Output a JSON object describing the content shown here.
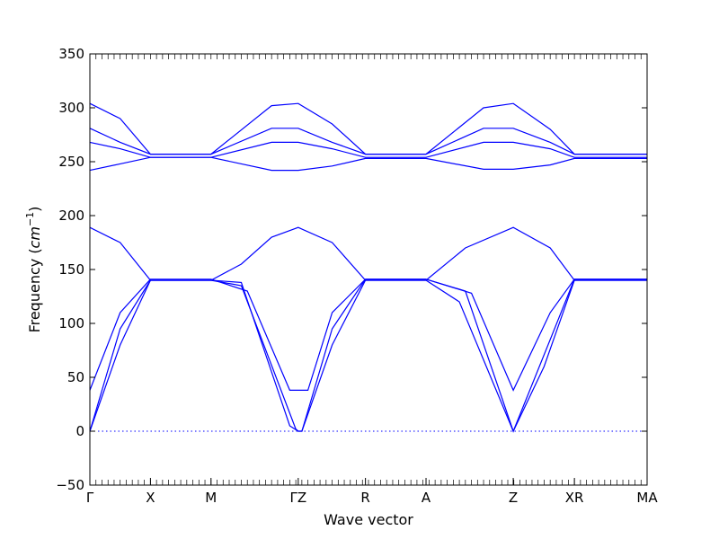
{
  "chart_data": {
    "type": "line",
    "xlabel": "Wave vector",
    "ylabel": "Frequency (",
    "ylabel_unit": "cm",
    "ylabel_exp": "−1",
    "ylabel_close": ")",
    "ylim": [
      -50,
      350
    ],
    "y_ticks": [
      -50,
      0,
      50,
      100,
      150,
      200,
      250,
      300,
      350
    ],
    "y_tick_labels": [
      "−50",
      "0",
      "50",
      "100",
      "150",
      "200",
      "250",
      "300",
      "350"
    ],
    "x_range": [
      0,
      9.2
    ],
    "high_symmetry_points": [
      {
        "x": 0.0,
        "label": "Γ"
      },
      {
        "x": 1.0,
        "label": "X"
      },
      {
        "x": 2.0,
        "label": "M"
      },
      {
        "x": 3.44,
        "label": "ΓZ"
      },
      {
        "x": 4.55,
        "label": "R"
      },
      {
        "x": 5.55,
        "label": "A"
      },
      {
        "x": 6.99,
        "label": "Z"
      },
      {
        "x": 8.0,
        "label": "XR"
      },
      {
        "x": 9.2,
        "label": "MA"
      }
    ],
    "zero_reference_line": {
      "y": 0,
      "style": "dotted",
      "color": "#0000ff"
    },
    "line_color": "#0000ff",
    "grid": false,
    "series": [
      {
        "x": [
          0,
          0.5,
          1,
          2,
          2.5,
          3.4,
          3.44,
          3.5,
          4.0,
          4.55,
          5.55,
          6.1,
          6.99,
          7.5,
          8.0,
          9.2
        ],
        "values": [
          0,
          80,
          140,
          140,
          135,
          2,
          0,
          0,
          80,
          140,
          140,
          120,
          0,
          60,
          140,
          140
        ]
      },
      {
        "x": [
          0,
          0.5,
          1,
          2,
          2.5,
          3.3,
          3.44,
          3.5,
          4.0,
          4.55,
          5.55,
          6.2,
          6.99,
          7.6,
          8.0,
          9.2
        ],
        "values": [
          0,
          95,
          140,
          140,
          138,
          5,
          0,
          0,
          95,
          141,
          141,
          130,
          0,
          85,
          141,
          141
        ]
      },
      {
        "x": [
          0,
          0.5,
          1,
          2,
          2.6,
          3.3,
          3.44,
          3.6,
          4.0,
          4.55,
          5.55,
          6.3,
          6.99,
          7.6,
          8.0,
          9.2
        ],
        "values": [
          38,
          110,
          141,
          141,
          130,
          38,
          38,
          38,
          110,
          141,
          141,
          128,
          38,
          110,
          141,
          141
        ]
      },
      {
        "x": [
          0,
          0.5,
          1,
          2,
          2.5,
          3.0,
          3.44,
          4.0,
          4.55,
          5.55,
          6.2,
          6.99,
          7.6,
          8.0,
          9.2
        ],
        "values": [
          189,
          175,
          140,
          140,
          155,
          180,
          189,
          175,
          140,
          140,
          170,
          189,
          170,
          140,
          140
        ]
      },
      {
        "x": [
          0,
          0.5,
          1,
          2,
          3.0,
          3.44,
          4.0,
          4.55,
          5.55,
          6.5,
          6.99,
          7.6,
          8.0,
          9.2
        ],
        "values": [
          242,
          248,
          254,
          254,
          242,
          242,
          246,
          253,
          253,
          243,
          243,
          247,
          253,
          253
        ]
      },
      {
        "x": [
          0,
          0.5,
          1,
          2,
          3.0,
          3.44,
          4.0,
          4.55,
          5.55,
          6.5,
          6.99,
          7.6,
          8.0,
          9.2
        ],
        "values": [
          268,
          262,
          254,
          254,
          268,
          268,
          262,
          254,
          254,
          268,
          268,
          262,
          254,
          254
        ]
      },
      {
        "x": [
          0,
          0.5,
          1,
          2,
          3.0,
          3.44,
          4.0,
          4.55,
          5.55,
          6.5,
          6.99,
          7.6,
          8.0,
          9.2
        ],
        "values": [
          281,
          268,
          257,
          257,
          281,
          281,
          268,
          257,
          257,
          281,
          281,
          268,
          257,
          257
        ]
      },
      {
        "x": [
          0,
          0.5,
          1,
          2,
          3.0,
          3.44,
          4.0,
          4.55,
          5.55,
          6.5,
          6.99,
          7.6,
          8.0,
          9.2
        ],
        "values": [
          304,
          290,
          257,
          257,
          302,
          304,
          285,
          257,
          257,
          300,
          304,
          280,
          257,
          257
        ]
      }
    ]
  }
}
